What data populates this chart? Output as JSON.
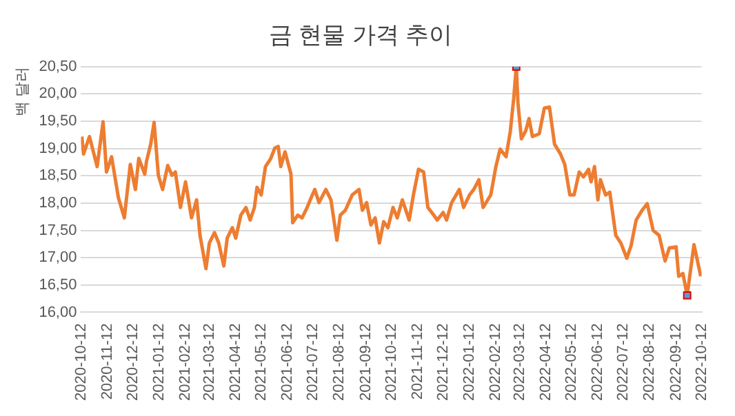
{
  "chart_data": {
    "type": "line",
    "title": "금 현물 가격 추이",
    "ylabel": "백 달러",
    "xlim": [
      "2020-10-12",
      "2022-10-12"
    ],
    "xticks": [
      "2020-10-12",
      "2020-11-12",
      "2020-12-12",
      "2021-01-12",
      "2021-02-12",
      "2021-03-12",
      "2021-04-12",
      "2021-05-12",
      "2021-06-12",
      "2021-07-12",
      "2021-08-12",
      "2021-09-12",
      "2021-10-12",
      "2021-11-12",
      "2021-12-12",
      "2022-01-12",
      "2022-02-12",
      "2022-03-12",
      "2022-04-12",
      "2022-05-12",
      "2022-06-12",
      "2022-07-12",
      "2022-08-12",
      "2022-09-12",
      "2022-10-12"
    ],
    "ylim": [
      16,
      20.5
    ],
    "yticks": [
      {
        "value": 16,
        "label": "16,00"
      },
      {
        "value": 16.5,
        "label": "16,50"
      },
      {
        "value": 17,
        "label": "17,00"
      },
      {
        "value": 17.5,
        "label": "17,50"
      },
      {
        "value": 18,
        "label": "18,00"
      },
      {
        "value": 18.5,
        "label": "18,50"
      },
      {
        "value": 19,
        "label": "19,00"
      },
      {
        "value": 19.5,
        "label": "19,50"
      },
      {
        "value": 20,
        "label": "20,00"
      },
      {
        "value": 20.5,
        "label": "20,50"
      }
    ],
    "grid": "y",
    "legend": false,
    "series": [
      {
        "color": "#ed7d31",
        "marker": "none",
        "line_style": "solid",
        "x": [
          "2020-10-13",
          "2020-10-15",
          "2020-10-22",
          "2020-10-31",
          "2020-11-07",
          "2020-11-11",
          "2020-11-17",
          "2020-11-25",
          "2020-12-02",
          "2020-12-09",
          "2020-12-15",
          "2020-12-19",
          "2020-12-26",
          "2020-12-28",
          "2021-01-02",
          "2021-01-06",
          "2021-01-11",
          "2021-01-16",
          "2021-01-22",
          "2021-01-27",
          "2021-01-31",
          "2021-02-06",
          "2021-02-12",
          "2021-02-19",
          "2021-02-25",
          "2021-03-01",
          "2021-03-08",
          "2021-03-12",
          "2021-03-18",
          "2021-03-23",
          "2021-03-29",
          "2021-04-02",
          "2021-04-08",
          "2021-04-12",
          "2021-04-18",
          "2021-04-24",
          "2021-04-29",
          "2021-05-04",
          "2021-05-07",
          "2021-05-12",
          "2021-05-17",
          "2021-05-23",
          "2021-05-28",
          "2021-06-01",
          "2021-06-04",
          "2021-06-09",
          "2021-06-16",
          "2021-06-18",
          "2021-06-24",
          "2021-06-29",
          "2021-07-05",
          "2021-07-10",
          "2021-07-14",
          "2021-07-19",
          "2021-07-27",
          "2021-08-02",
          "2021-08-09",
          "2021-08-13",
          "2021-08-19",
          "2021-08-27",
          "2021-09-04",
          "2021-09-08",
          "2021-09-13",
          "2021-09-18",
          "2021-09-23",
          "2021-09-28",
          "2021-10-03",
          "2021-10-08",
          "2021-10-14",
          "2021-10-19",
          "2021-10-25",
          "2021-11-02",
          "2021-11-07",
          "2021-11-13",
          "2021-11-19",
          "2021-11-24",
          "2021-12-01",
          "2021-12-05",
          "2021-12-12",
          "2021-12-16",
          "2021-12-22",
          "2021-12-31",
          "2022-01-05",
          "2022-01-12",
          "2022-01-17",
          "2022-01-23",
          "2022-01-28",
          "2022-02-06",
          "2022-02-12",
          "2022-02-17",
          "2022-02-24",
          "2022-03-01",
          "2022-03-05",
          "2022-03-08",
          "2022-03-10",
          "2022-03-14",
          "2022-03-19",
          "2022-03-23",
          "2022-03-27",
          "2022-04-04",
          "2022-04-10",
          "2022-04-16",
          "2022-04-22",
          "2022-04-29",
          "2022-05-04",
          "2022-05-10",
          "2022-05-15",
          "2022-05-21",
          "2022-05-26",
          "2022-06-01",
          "2022-06-04",
          "2022-06-08",
          "2022-06-12",
          "2022-06-15",
          "2022-06-21",
          "2022-06-26",
          "2022-07-03",
          "2022-07-09",
          "2022-07-16",
          "2022-07-21",
          "2022-07-27",
          "2022-08-03",
          "2022-08-09",
          "2022-08-16",
          "2022-08-23",
          "2022-08-30",
          "2022-09-04",
          "2022-09-12",
          "2022-09-15",
          "2022-09-20",
          "2022-09-25",
          "2022-10-03",
          "2022-10-11"
        ],
        "values": [
          19.22,
          18.9,
          19.22,
          18.67,
          19.49,
          18.57,
          18.85,
          18.1,
          17.73,
          18.71,
          18.25,
          18.82,
          18.53,
          18.76,
          19.08,
          19.48,
          18.51,
          18.25,
          18.69,
          18.51,
          18.57,
          17.92,
          18.39,
          17.73,
          18.06,
          17.41,
          16.8,
          17.27,
          17.46,
          17.27,
          16.85,
          17.36,
          17.55,
          17.36,
          17.78,
          17.92,
          17.69,
          17.92,
          18.29,
          18.15,
          18.67,
          18.81,
          19.01,
          19.04,
          18.67,
          18.94,
          18.53,
          17.64,
          17.78,
          17.73,
          17.92,
          18.11,
          18.25,
          18.01,
          18.25,
          18.06,
          17.32,
          17.78,
          17.87,
          18.15,
          18.25,
          17.87,
          18.01,
          17.6,
          17.73,
          17.27,
          17.66,
          17.55,
          17.92,
          17.73,
          18.06,
          17.69,
          18.15,
          18.62,
          18.57,
          17.92,
          17.78,
          17.69,
          17.83,
          17.69,
          18.01,
          18.25,
          17.92,
          18.15,
          18.25,
          18.43,
          17.92,
          18.15,
          18.67,
          18.99,
          18.85,
          19.32,
          19.92,
          20.5,
          19.83,
          19.18,
          19.32,
          19.55,
          19.22,
          19.27,
          19.74,
          19.76,
          19.08,
          18.9,
          18.71,
          18.15,
          18.15,
          18.57,
          18.48,
          18.62,
          18.39,
          18.67,
          18.06,
          18.43,
          18.15,
          18.2,
          17.41,
          17.27,
          16.99,
          17.22,
          17.69,
          17.87,
          17.99,
          17.5,
          17.41,
          16.94,
          17.18,
          17.2,
          16.66,
          16.71,
          16.31,
          17.24,
          16.66
        ]
      },
      {
        "type": "scatter",
        "color": "#5b9bd5",
        "marker": "square",
        "x": [
          "2022-03-08",
          "2022-09-25"
        ],
        "values": [
          20.5,
          16.31
        ]
      }
    ]
  }
}
